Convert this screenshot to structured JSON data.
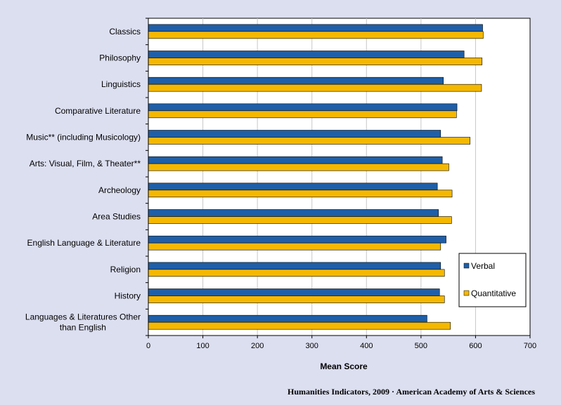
{
  "chart_data": {
    "type": "bar",
    "orientation": "horizontal",
    "categories": [
      "Classics",
      "Philosophy",
      "Linguistics",
      "Comparative Literature",
      "Music** (including Musicology)",
      "Arts: Visual, Film, & Theater**",
      "Archeology",
      "Area Studies",
      "English Language & Literature",
      "Religion",
      "History",
      "Languages & Literatures Other than English"
    ],
    "category_lines": [
      [
        "Classics"
      ],
      [
        "Philosophy"
      ],
      [
        "Linguistics"
      ],
      [
        "Comparative Literature"
      ],
      [
        "Music** (including Musicology)"
      ],
      [
        "Arts: Visual, Film, & Theater**"
      ],
      [
        "Archeology"
      ],
      [
        "Area Studies"
      ],
      [
        "English Language & Literature"
      ],
      [
        "Religion"
      ],
      [
        "History"
      ],
      [
        "Languages & Literatures Other",
        "than English"
      ]
    ],
    "series": [
      {
        "name": "Verbal",
        "color": "#1f5fa8",
        "values": [
          613,
          579,
          541,
          566,
          536,
          539,
          530,
          532,
          546,
          536,
          534,
          511
        ]
      },
      {
        "name": "Quantitative",
        "color": "#f5b800",
        "values": [
          614,
          612,
          611,
          565,
          590,
          551,
          557,
          556,
          536,
          543,
          543,
          554
        ]
      }
    ],
    "xlabel": "Mean Score",
    "xlim": [
      0,
      700
    ],
    "xticks": [
      "0",
      "100",
      "200",
      "300",
      "400",
      "500",
      "600",
      "700"
    ],
    "grid": "vertical",
    "legend_position": "bottom-right"
  },
  "source_note": "Humanities Indicators, 2009 · American Academy of Arts & Sciences"
}
